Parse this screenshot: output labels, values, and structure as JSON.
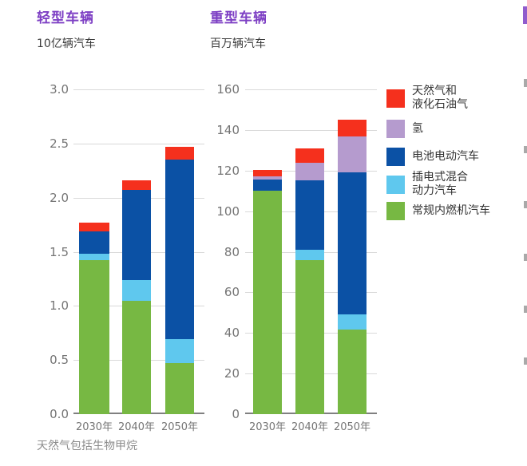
{
  "figure": {
    "footnote": "天然气包括生物甲烷"
  },
  "colors": {
    "title": "#7d3fc4",
    "subtitle_text": "#3c3c3c",
    "axis_text": "#757575",
    "legend_text": "#333333",
    "grid": "#d9d9d9",
    "baseline": "#808080",
    "background": "#ffffff"
  },
  "chart_data": [
    {
      "id": "light-vehicles",
      "type": "bar",
      "stacked": true,
      "title": "轻型车辆",
      "subtitle": "10亿辆汽车",
      "categories": [
        "2030年",
        "2040年",
        "2050年"
      ],
      "ylim": [
        0,
        3.0
      ],
      "yticks": [
        "3.0",
        "2.5",
        "2.0",
        "1.5",
        "1.0",
        "0.5",
        "0.0"
      ],
      "grid": true,
      "series": [
        {
          "id": "conventional-ice",
          "name": "常规内燃机汽车",
          "color": "#77b843",
          "values": [
            1.42,
            1.05,
            0.47
          ]
        },
        {
          "id": "plug-in-hybrid",
          "name": "插电式混合动力汽车",
          "color": "#5fc8ee",
          "values": [
            0.06,
            0.19,
            0.22
          ]
        },
        {
          "id": "battery-electric",
          "name": "电池电动汽车",
          "color": "#0b51a5",
          "values": [
            0.21,
            0.83,
            1.66
          ]
        },
        {
          "id": "hydrogen",
          "name": "氢",
          "color": "#b59bce",
          "values": [
            0,
            0,
            0
          ]
        },
        {
          "id": "natural-gas-lpg",
          "name": "天然气和液化石油气",
          "color": "#f5301d",
          "values": [
            0.08,
            0.09,
            0.12
          ]
        }
      ]
    },
    {
      "id": "heavy-vehicles",
      "type": "bar",
      "stacked": true,
      "title": "重型车辆",
      "subtitle": "百万辆汽车",
      "categories": [
        "2030年",
        "2040年",
        "2050年"
      ],
      "ylim": [
        0,
        160
      ],
      "yticks": [
        "160",
        "140",
        "120",
        "100",
        "80",
        "60",
        "40",
        "20",
        "0"
      ],
      "grid": true,
      "series": [
        {
          "id": "conventional-ice",
          "name": "常规内燃机汽车",
          "color": "#77b843",
          "values": [
            110,
            76,
            41.5
          ]
        },
        {
          "id": "plug-in-hybrid",
          "name": "插电式混合动力汽车",
          "color": "#5fc8ee",
          "values": [
            0,
            5,
            7.5
          ]
        },
        {
          "id": "battery-electric",
          "name": "电池电动汽车",
          "color": "#0b51a5",
          "values": [
            5.5,
            34,
            70
          ]
        },
        {
          "id": "hydrogen",
          "name": "氢",
          "color": "#b59bce",
          "values": [
            1.5,
            9,
            18
          ]
        },
        {
          "id": "natural-gas-lpg",
          "name": "天然气和液化石油气",
          "color": "#f5301d",
          "values": [
            3.5,
            7,
            8
          ]
        }
      ]
    }
  ],
  "legend": {
    "position": "right",
    "items": [
      {
        "id": "natural-gas-lpg",
        "color": "#f5301d",
        "lines": [
          "天然气和",
          "液化石油气"
        ]
      },
      {
        "id": "hydrogen",
        "color": "#b59bce",
        "lines": [
          "氢"
        ]
      },
      {
        "id": "battery-electric",
        "color": "#0b51a5",
        "lines": [
          "电池电动汽车"
        ]
      },
      {
        "id": "plug-in-hybrid",
        "color": "#5fc8ee",
        "lines": [
          "插电式混合",
          "动力汽车"
        ]
      },
      {
        "id": "conventional-ice",
        "color": "#77b843",
        "lines": [
          "常规内燃机汽车"
        ]
      }
    ]
  }
}
